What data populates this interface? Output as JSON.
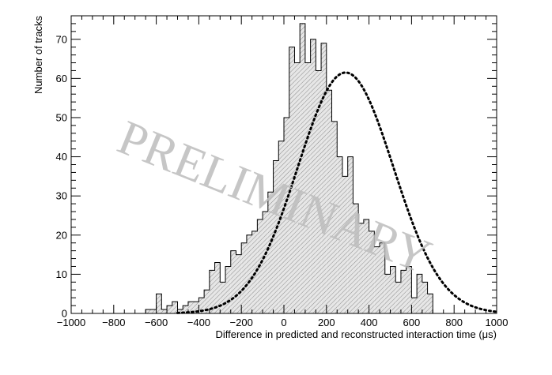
{
  "chart_data": {
    "type": "bar",
    "xlabel": "Difference in predicted and reconstructed interaction time (μs)",
    "ylabel": "Number of tracks",
    "xlim": [
      -1000,
      1000
    ],
    "ylim": [
      0,
      76
    ],
    "xticks": [
      -1000,
      -800,
      -600,
      -400,
      -200,
      0,
      200,
      400,
      600,
      800,
      1000
    ],
    "yticks": [
      0,
      10,
      20,
      30,
      40,
      50,
      60,
      70
    ],
    "watermark": "PRELIMINARY",
    "grid": false,
    "bin_width": 25,
    "bin_start": -650,
    "histogram": [
      1,
      1,
      5,
      1,
      2,
      3,
      1,
      2,
      3,
      3,
      4,
      6,
      11,
      13,
      8,
      12,
      16,
      15,
      18,
      20,
      21,
      24,
      26,
      31,
      39,
      44,
      50,
      68,
      64,
      74,
      64,
      70,
      62,
      69,
      57,
      49,
      40,
      35,
      40,
      28,
      23,
      24,
      21,
      17,
      18,
      10,
      12,
      8,
      11,
      12,
      4,
      10,
      8,
      5
    ],
    "fit_curve": {
      "style": "dotted",
      "function": "gaussian",
      "amplitude": 61.5,
      "mean": 290,
      "sigma": 225,
      "x_from": -500,
      "x_to": 1000
    }
  }
}
